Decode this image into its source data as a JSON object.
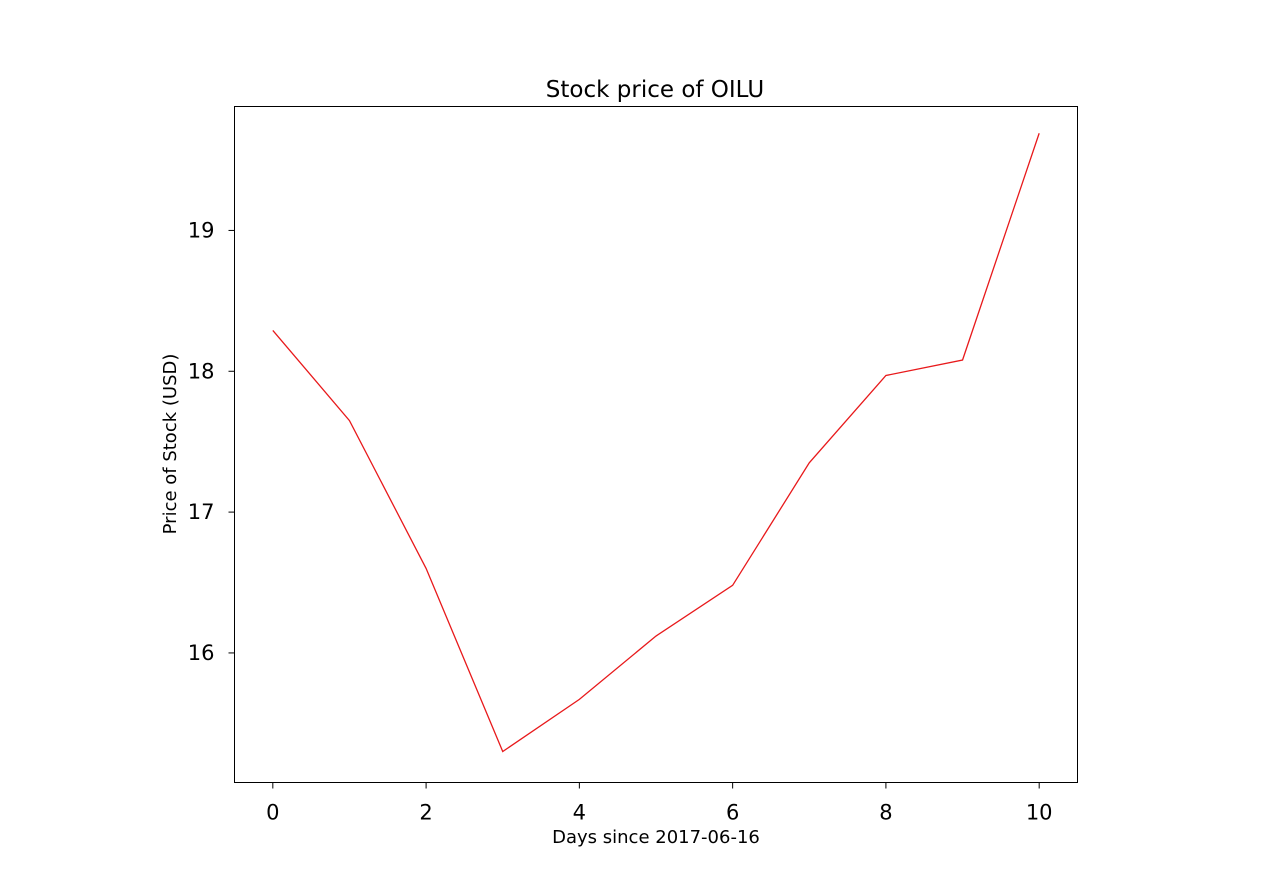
{
  "chart_data": {
    "type": "line",
    "title": "Stock price of OILU",
    "xlabel": "Days since 2017-06-16",
    "ylabel": "Price of Stock (USD)",
    "x": [
      0,
      1,
      2,
      3,
      4,
      5,
      6,
      7,
      8,
      9,
      10
    ],
    "xticks": [
      0,
      2,
      4,
      6,
      8,
      10
    ],
    "yticks": [
      16,
      17,
      18,
      19
    ],
    "xlim": [
      -0.5,
      10.5
    ],
    "ylim": [
      15.08,
      19.88
    ],
    "grid": false,
    "series": [
      {
        "values": [
          18.29,
          17.65,
          16.6,
          15.3,
          15.67,
          16.12,
          16.48,
          17.35,
          17.97,
          18.08,
          19.69
        ],
        "color": "#e8191b"
      }
    ]
  }
}
